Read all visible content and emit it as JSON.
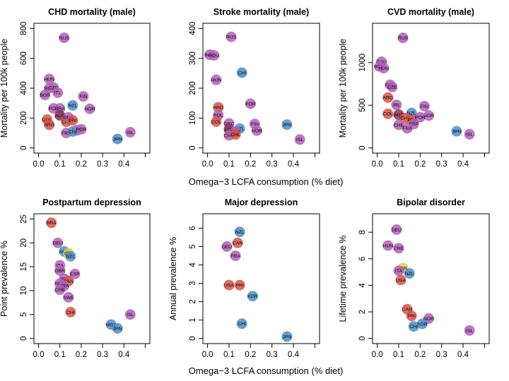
{
  "figure": {
    "xlabel_row1": "Omega−3 LCFA consumption (% diet)",
    "xlabel_row2": "Omega−3 LCFA consumption (% diet)"
  },
  "colors": {
    "purple": "#b160b8",
    "blue": "#4f8ec6",
    "red": "#d9544a",
    "green": "#8ec86a",
    "yellow": "#e0c84a",
    "maroon": "#8e2f52"
  },
  "chart_data": [
    {
      "type": "scatter",
      "title": "CHD mortality (male)",
      "xlabel": "",
      "ylabel": "Mortality per 100k people",
      "xlim": [
        0,
        0.5
      ],
      "ylim": [
        0,
        800
      ],
      "xticks": [
        0.0,
        0.1,
        0.2,
        0.3,
        0.4
      ],
      "xtick_labels": [
        "0.0",
        "0.1",
        "0.2",
        "0.3",
        "0.4"
      ],
      "yticks": [
        0,
        200,
        400,
        600,
        800
      ],
      "ytick_labels": [
        "0",
        "200",
        "400",
        "600",
        "800"
      ],
      "points": [
        {
          "label": "RUS",
          "x": 0.12,
          "y": 738,
          "color": "purple"
        },
        {
          "label": "HUN",
          "x": 0.05,
          "y": 462,
          "color": "purple"
        },
        {
          "label": "BLR",
          "x": 0.05,
          "y": 400,
          "color": "purple"
        },
        {
          "label": "CZE",
          "x": 0.07,
          "y": 405,
          "color": "purple"
        },
        {
          "label": "BGR",
          "x": 0.03,
          "y": 355,
          "color": "purple"
        },
        {
          "label": "FIN",
          "x": 0.21,
          "y": 345,
          "color": "purple"
        },
        {
          "label": "ITL",
          "x": 0.09,
          "y": 370,
          "color": "purple"
        },
        {
          "label": "NOR",
          "x": 0.24,
          "y": 262,
          "color": "purple"
        },
        {
          "label": "POL",
          "x": 0.07,
          "y": 265,
          "color": "purple"
        },
        {
          "label": "BRA",
          "x": 0.1,
          "y": 265,
          "color": "purple"
        },
        {
          "label": "NZL",
          "x": 0.16,
          "y": 285,
          "color": "blue"
        },
        {
          "label": "AUS",
          "x": 0.1,
          "y": 218,
          "color": "maroon"
        },
        {
          "label": "COL",
          "x": 0.04,
          "y": 190,
          "color": "red"
        },
        {
          "label": "ARG",
          "x": 0.05,
          "y": 155,
          "color": "red"
        },
        {
          "label": "CHL",
          "x": 0.13,
          "y": 175,
          "color": "red"
        },
        {
          "label": "DNK",
          "x": 0.14,
          "y": 205,
          "color": "purple"
        },
        {
          "label": "PRI",
          "x": 0.16,
          "y": 185,
          "color": "red"
        },
        {
          "label": "ESP",
          "x": 0.18,
          "y": 118,
          "color": "purple"
        },
        {
          "label": "FRA",
          "x": 0.13,
          "y": 100,
          "color": "purple"
        },
        {
          "label": "CHI",
          "x": 0.16,
          "y": 110,
          "color": "blue"
        },
        {
          "label": "POR",
          "x": 0.2,
          "y": 125,
          "color": "purple"
        },
        {
          "label": "JPN",
          "x": 0.37,
          "y": 60,
          "color": "blue"
        },
        {
          "label": "ISL",
          "x": 0.43,
          "y": 105,
          "color": "purple"
        }
      ]
    },
    {
      "type": "scatter",
      "title": "Stroke mortality (male)",
      "xlabel": "",
      "ylabel": "",
      "xlim": [
        0,
        0.5
      ],
      "ylim": [
        0,
        400
      ],
      "xticks": [
        0.0,
        0.1,
        0.2,
        0.3,
        0.4
      ],
      "xtick_labels": [
        "0.0",
        "0.1",
        "0.2",
        "0.3",
        "0.4"
      ],
      "yticks": [
        0,
        100,
        200,
        300,
        400
      ],
      "ytick_labels": [
        "0",
        "100",
        "200",
        "300",
        "400"
      ],
      "points": [
        {
          "label": "RUS",
          "x": 0.11,
          "y": 372,
          "color": "purple"
        },
        {
          "label": "BGR",
          "x": 0.01,
          "y": 312,
          "color": "purple"
        },
        {
          "label": "ROU",
          "x": 0.03,
          "y": 310,
          "color": "purple"
        },
        {
          "label": "CHI",
          "x": 0.16,
          "y": 252,
          "color": "blue"
        },
        {
          "label": "HUN",
          "x": 0.04,
          "y": 228,
          "color": "purple"
        },
        {
          "label": "ARG",
          "x": 0.05,
          "y": 136,
          "color": "red"
        },
        {
          "label": "POR",
          "x": 0.2,
          "y": 148,
          "color": "purple"
        },
        {
          "label": "POL",
          "x": 0.05,
          "y": 110,
          "color": "purple"
        },
        {
          "label": "COL",
          "x": 0.04,
          "y": 88,
          "color": "red"
        },
        {
          "label": "GRC",
          "x": 0.1,
          "y": 82,
          "color": "purple"
        },
        {
          "label": "AUS",
          "x": 0.1,
          "y": 62,
          "color": "maroon"
        },
        {
          "label": "NZL",
          "x": 0.15,
          "y": 65,
          "color": "blue"
        },
        {
          "label": "DNK",
          "x": 0.13,
          "y": 55,
          "color": "purple"
        },
        {
          "label": "CHE",
          "x": 0.1,
          "y": 42,
          "color": "purple"
        },
        {
          "label": "CHL",
          "x": 0.13,
          "y": 45,
          "color": "red"
        },
        {
          "label": "FIN",
          "x": 0.22,
          "y": 80,
          "color": "purple"
        },
        {
          "label": "NOR",
          "x": 0.23,
          "y": 58,
          "color": "purple"
        },
        {
          "label": "JPN",
          "x": 0.37,
          "y": 78,
          "color": "blue"
        },
        {
          "label": "ISL",
          "x": 0.43,
          "y": 28,
          "color": "purple"
        }
      ]
    },
    {
      "type": "scatter",
      "title": "CVD mortality (male)",
      "xlabel": "",
      "ylabel": "Mortality per 100k people",
      "xlim": [
        0,
        0.5
      ],
      "ylim": [
        0,
        1400
      ],
      "xticks": [
        0.0,
        0.1,
        0.2,
        0.3,
        0.4
      ],
      "xtick_labels": [
        "0.0",
        "0.1",
        "0.2",
        "0.3",
        "0.4"
      ],
      "yticks": [
        0,
        500,
        1000
      ],
      "ytick_labels": [
        "0",
        "500",
        "1000"
      ],
      "points": [
        {
          "label": "RUS",
          "x": 0.12,
          "y": 1290,
          "color": "purple"
        },
        {
          "label": "ROU",
          "x": 0.02,
          "y": 1010,
          "color": "purple"
        },
        {
          "label": "BGR",
          "x": 0.01,
          "y": 955,
          "color": "purple"
        },
        {
          "label": "HUN",
          "x": 0.03,
          "y": 935,
          "color": "purple"
        },
        {
          "label": "POL",
          "x": 0.06,
          "y": 740,
          "color": "purple"
        },
        {
          "label": "CZE",
          "x": 0.07,
          "y": 715,
          "color": "purple"
        },
        {
          "label": "ARG",
          "x": 0.05,
          "y": 590,
          "color": "red"
        },
        {
          "label": "IRL",
          "x": 0.09,
          "y": 505,
          "color": "purple"
        },
        {
          "label": "FIN",
          "x": 0.22,
          "y": 490,
          "color": "purple"
        },
        {
          "label": "COL",
          "x": 0.05,
          "y": 400,
          "color": "red"
        },
        {
          "label": "AUS",
          "x": 0.1,
          "y": 390,
          "color": "maroon"
        },
        {
          "label": "NZL",
          "x": 0.16,
          "y": 410,
          "color": "blue"
        },
        {
          "label": "CHL",
          "x": 0.13,
          "y": 350,
          "color": "red"
        },
        {
          "label": "NOR",
          "x": 0.24,
          "y": 380,
          "color": "purple"
        },
        {
          "label": "PRI",
          "x": 0.16,
          "y": 330,
          "color": "red"
        },
        {
          "label": "POR",
          "x": 0.2,
          "y": 360,
          "color": "purple"
        },
        {
          "label": "CHE",
          "x": 0.1,
          "y": 270,
          "color": "purple"
        },
        {
          "label": "ESP",
          "x": 0.17,
          "y": 280,
          "color": "purple"
        },
        {
          "label": "FRA",
          "x": 0.14,
          "y": 230,
          "color": "purple"
        },
        {
          "label": "JPN",
          "x": 0.37,
          "y": 195,
          "color": "blue"
        },
        {
          "label": "ISL",
          "x": 0.43,
          "y": 160,
          "color": "purple"
        }
      ]
    },
    {
      "type": "scatter",
      "title": "Postpartum depression",
      "xlabel": "",
      "ylabel": "Point prevalence %",
      "xlim": [
        0,
        0.5
      ],
      "ylim": [
        0,
        25
      ],
      "xticks": [
        0.0,
        0.1,
        0.2,
        0.3,
        0.4
      ],
      "xtick_labels": [
        "0.0",
        "0.1",
        "0.2",
        "0.3",
        "0.4"
      ],
      "yticks": [
        0,
        5,
        10,
        15,
        20,
        25
      ],
      "ytick_labels": [
        "0",
        "5",
        "10",
        "15",
        "20",
        "25"
      ],
      "points": [
        {
          "label": "BRA",
          "x": 0.06,
          "y": 24.2,
          "color": "red"
        },
        {
          "label": "DEU",
          "x": 0.09,
          "y": 20.0,
          "color": "purple"
        },
        {
          "label": "AUS",
          "x": 0.12,
          "y": 18.2,
          "color": "blue"
        },
        {
          "label": "ISR",
          "x": 0.14,
          "y": 17.8,
          "color": "yellow"
        },
        {
          "label": "NZL",
          "x": 0.15,
          "y": 17.2,
          "color": "blue"
        },
        {
          "label": "ITA",
          "x": 0.1,
          "y": 15.3,
          "color": "purple"
        },
        {
          "label": "GBR",
          "x": 0.1,
          "y": 14.2,
          "color": "purple"
        },
        {
          "label": "ESP",
          "x": 0.17,
          "y": 13.5,
          "color": "purple"
        },
        {
          "label": "IRL",
          "x": 0.12,
          "y": 12.5,
          "color": "purple"
        },
        {
          "label": "CAN",
          "x": 0.14,
          "y": 12.0,
          "color": "red"
        },
        {
          "label": "NLD",
          "x": 0.1,
          "y": 11.5,
          "color": "purple"
        },
        {
          "label": "FRA",
          "x": 0.12,
          "y": 11.0,
          "color": "purple"
        },
        {
          "label": "CHE",
          "x": 0.1,
          "y": 10.2,
          "color": "purple"
        },
        {
          "label": "SWE",
          "x": 0.14,
          "y": 8.6,
          "color": "purple"
        },
        {
          "label": "CHI",
          "x": 0.15,
          "y": 5.5,
          "color": "red"
        },
        {
          "label": "MSY",
          "x": 0.34,
          "y": 2.9,
          "color": "blue"
        },
        {
          "label": "JPN",
          "x": 0.37,
          "y": 2.1,
          "color": "blue"
        },
        {
          "label": "ISL",
          "x": 0.43,
          "y": 5.0,
          "color": "purple"
        }
      ]
    },
    {
      "type": "scatter",
      "title": "Major depression",
      "xlabel": "",
      "ylabel": "Annual prevalence %",
      "xlim": [
        0,
        0.5
      ],
      "ylim": [
        0,
        6.5
      ],
      "xticks": [
        0.0,
        0.1,
        0.2,
        0.3,
        0.4
      ],
      "xtick_labels": [
        "0.0",
        "0.1",
        "0.2",
        "0.3",
        "0.4"
      ],
      "yticks": [
        0,
        1,
        2,
        3,
        4,
        5,
        6
      ],
      "ytick_labels": [
        "0",
        "1",
        "2",
        "3",
        "4",
        "5",
        "6"
      ],
      "points": [
        {
          "label": "NZL",
          "x": 0.15,
          "y": 5.8,
          "color": "blue"
        },
        {
          "label": "CAN",
          "x": 0.14,
          "y": 5.2,
          "color": "red"
        },
        {
          "label": "DEU",
          "x": 0.09,
          "y": 5.0,
          "color": "purple"
        },
        {
          "label": "FRA",
          "x": 0.13,
          "y": 4.5,
          "color": "purple"
        },
        {
          "label": "USA",
          "x": 0.1,
          "y": 2.9,
          "color": "red"
        },
        {
          "label": "PRI",
          "x": 0.15,
          "y": 2.9,
          "color": "red"
        },
        {
          "label": "KOR",
          "x": 0.21,
          "y": 2.3,
          "color": "blue"
        },
        {
          "label": "CHI",
          "x": 0.16,
          "y": 0.8,
          "color": "blue"
        },
        {
          "label": "JPN",
          "x": 0.37,
          "y": 0.1,
          "color": "blue"
        }
      ]
    },
    {
      "type": "scatter",
      "title": "Bipolar disorder",
      "xlabel": "",
      "ylabel": "Lifetime prevalence %",
      "xlim": [
        0,
        0.5
      ],
      "ylim": [
        0,
        9
      ],
      "xticks": [
        0.0,
        0.1,
        0.2,
        0.3,
        0.4
      ],
      "xtick_labels": [
        "0.0",
        "0.1",
        "0.2",
        "0.3",
        "0.4"
      ],
      "yticks": [
        0,
        2,
        4,
        6,
        8
      ],
      "ytick_labels": [
        "0",
        "2",
        "4",
        "6",
        "8"
      ],
      "points": [
        {
          "label": "DEU",
          "x": 0.09,
          "y": 8.2,
          "color": "purple"
        },
        {
          "label": "HUN",
          "x": 0.05,
          "y": 7.0,
          "color": "purple"
        },
        {
          "label": "CHE",
          "x": 0.1,
          "y": 6.8,
          "color": "purple"
        },
        {
          "label": "ISR",
          "x": 0.12,
          "y": 5.3,
          "color": "yellow"
        },
        {
          "label": "ITA",
          "x": 0.1,
          "y": 5.1,
          "color": "purple"
        },
        {
          "label": "NZL",
          "x": 0.15,
          "y": 4.9,
          "color": "blue"
        },
        {
          "label": "USA",
          "x": 0.11,
          "y": 4.4,
          "color": "red"
        },
        {
          "label": "CAN",
          "x": 0.14,
          "y": 2.2,
          "color": "red"
        },
        {
          "label": "PRI",
          "x": 0.16,
          "y": 1.7,
          "color": "red"
        },
        {
          "label": "NOR",
          "x": 0.24,
          "y": 1.5,
          "color": "purple"
        },
        {
          "label": "KOR",
          "x": 0.21,
          "y": 1.1,
          "color": "blue"
        },
        {
          "label": "CHI",
          "x": 0.17,
          "y": 0.9,
          "color": "blue"
        },
        {
          "label": "ISL",
          "x": 0.43,
          "y": 0.6,
          "color": "purple"
        }
      ]
    }
  ]
}
